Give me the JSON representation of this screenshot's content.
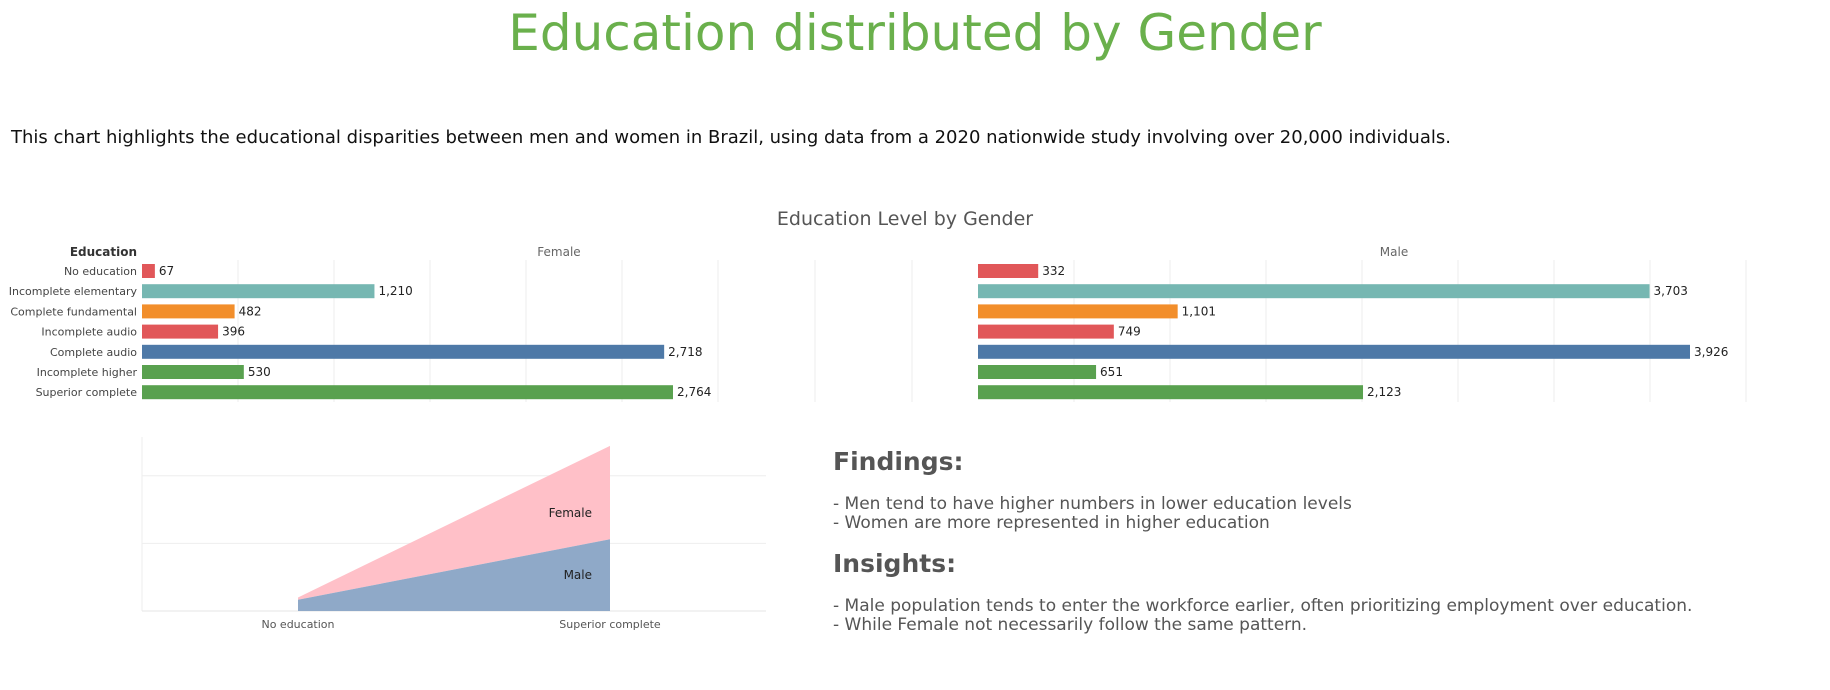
{
  "page": {
    "title": "Education distributed by Gender",
    "subtitle": "This chart highlights the educational disparities between men and women in Brazil, using data from a 2020 nationwide study involving over 20,000 individuals."
  },
  "chart_data": [
    {
      "type": "bar",
      "orientation": "horizontal",
      "title": "Education Level by Gender",
      "row_header": "Education",
      "categories": [
        "No education",
        "Incomplete elementary",
        "Complete fundamental",
        "Incomplete audio",
        "Complete audio",
        "Incomplete higher",
        "Superior complete"
      ],
      "category_colors": [
        "#e15759",
        "#76b7b2",
        "#f28e2b",
        "#e15759",
        "#4e79a7",
        "#59a14f",
        "#59a14f"
      ],
      "series": [
        {
          "name": "Female",
          "values": [
            67,
            1210,
            482,
            396,
            2718,
            530,
            2764
          ]
        },
        {
          "name": "Male",
          "values": [
            332,
            3703,
            1101,
            749,
            3926,
            651,
            2123
          ]
        }
      ],
      "value_labels": {
        "Female": [
          "67",
          "1,210",
          "482",
          "396",
          "2,718",
          "530",
          "2,764"
        ],
        "Male": [
          "332",
          "3,703",
          "1,101",
          "749",
          "3,926",
          "651",
          "2,123"
        ]
      },
      "grid": true
    },
    {
      "type": "area",
      "stacked": true,
      "categories": [
        "No education",
        "Superior complete"
      ],
      "series": [
        {
          "name": "Male",
          "values": [
            332,
            2123
          ],
          "color": "#8fa9c8"
        },
        {
          "name": "Female",
          "values": [
            67,
            2764
          ],
          "color": "#ffc0c8"
        }
      ],
      "ylim": [
        0,
        5000
      ],
      "grid": true
    }
  ],
  "findings": {
    "findings_title": "Findings:",
    "findings_lines": [
      "- Men tend to have higher numbers in lower education levels",
      "- Women are more represented in higher education"
    ],
    "insights_title": "Insights:",
    "insights_lines": [
      "-  Male population tends to enter the workforce earlier, often prioritizing employment over education.",
      "- While Female not necessarily follow the same pattern."
    ]
  }
}
